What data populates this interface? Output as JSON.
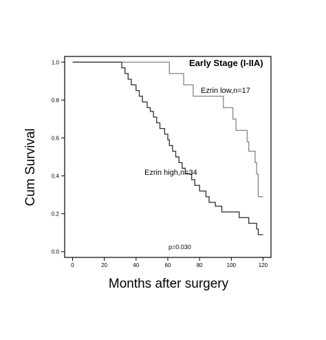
{
  "chart_data": {
    "type": "line",
    "title": "Early Stage (I-IIA)",
    "xlabel": "Months after surgery",
    "ylabel": "Cum Survival",
    "xlim": [
      -5,
      125
    ],
    "ylim": [
      -0.03,
      1.03
    ],
    "x_ticks": [
      0,
      20,
      40,
      60,
      80,
      100,
      120
    ],
    "y_ticks": [
      0.0,
      0.2,
      0.4,
      0.6,
      0.8,
      1.0
    ],
    "x_tick_labels": [
      "0",
      "20",
      "40",
      "60",
      "80",
      "100",
      "120"
    ],
    "y_tick_labels": [
      "0.0",
      "0.2",
      "0.4",
      "0.6",
      "0.8",
      "1.0"
    ],
    "grid": false,
    "legend": "none",
    "step": true,
    "series": [
      {
        "name": "Ezrin low,n=17",
        "color": "#8c8c8c",
        "x": [
          0,
          60,
          61,
          68,
          70,
          74,
          76,
          93,
          95,
          100,
          101,
          103,
          107,
          110,
          111,
          115,
          116,
          117,
          120
        ],
        "y": [
          1.0,
          1.0,
          0.94,
          0.94,
          0.88,
          0.88,
          0.82,
          0.82,
          0.76,
          0.76,
          0.7,
          0.64,
          0.64,
          0.58,
          0.53,
          0.47,
          0.41,
          0.29,
          0.29
        ]
      },
      {
        "name": "Ezrin high,n=34",
        "color": "#3a3a3a",
        "x": [
          0,
          30,
          31,
          33,
          35,
          37,
          40,
          42,
          44,
          47,
          49,
          51,
          53,
          55,
          58,
          60,
          61,
          63,
          65,
          67,
          69,
          71,
          73,
          75,
          77,
          80,
          82,
          84,
          86,
          88,
          90,
          92,
          94,
          96,
          99,
          103,
          105,
          107,
          110,
          111,
          113,
          116,
          117,
          120
        ],
        "y": [
          1.0,
          1.0,
          0.97,
          0.94,
          0.91,
          0.88,
          0.85,
          0.82,
          0.79,
          0.76,
          0.74,
          0.71,
          0.68,
          0.65,
          0.62,
          0.59,
          0.56,
          0.53,
          0.5,
          0.47,
          0.44,
          0.41,
          0.41,
          0.38,
          0.35,
          0.32,
          0.32,
          0.29,
          0.26,
          0.26,
          0.24,
          0.24,
          0.21,
          0.21,
          0.21,
          0.21,
          0.18,
          0.18,
          0.18,
          0.15,
          0.15,
          0.12,
          0.09,
          0.09
        ]
      }
    ],
    "annotations": {
      "low": "Ezrin low,n=17",
      "high": "Ezrin high,n=34",
      "pvalue": "p=0.030"
    }
  }
}
